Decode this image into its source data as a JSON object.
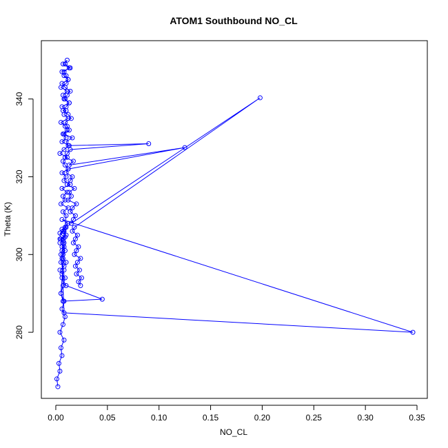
{
  "chart_data": {
    "type": "line",
    "title": "ATOM1 Southbound NO_CL",
    "xlabel": "NO_CL",
    "ylabel": "Theta (K)",
    "xlim": [
      -0.014,
      0.36
    ],
    "ylim": [
      263,
      355
    ],
    "x_ticks": [
      0.0,
      0.05,
      0.1,
      0.15,
      0.2,
      0.25,
      0.3,
      0.35
    ],
    "x_tick_labels": [
      "0.00",
      "0.05",
      "0.10",
      "0.15",
      "0.20",
      "0.25",
      "0.30",
      "0.35"
    ],
    "y_ticks": [
      280,
      300,
      320,
      340
    ],
    "y_tick_labels": [
      "280",
      "300",
      "320",
      "340"
    ],
    "grid": false,
    "legend": "none",
    "color": "#0000ff",
    "series": [
      {
        "x": [
          0.002,
          0.001,
          0.004,
          0.003,
          0.006,
          0.005,
          0.008,
          0.004,
          0.007,
          0.009,
          0.006,
          0.008,
          0.005,
          0.007,
          0.009,
          0.006,
          0.004,
          0.008,
          0.01,
          0.007,
          0.005,
          0.006,
          0.008,
          0.004,
          0.007,
          0.005,
          0.009,
          0.006,
          0.004,
          0.008,
          0.006,
          0.01,
          0.005,
          0.007,
          0.045,
          0.01,
          0.006,
          0.008,
          0.005,
          0.007,
          0.009,
          0.006,
          0.008,
          0.004,
          0.01,
          0.007,
          0.009,
          0.012,
          0.006,
          0.346,
          0.008,
          0.006,
          0.01,
          0.007,
          0.012,
          0.005,
          0.009,
          0.007,
          0.011,
          0.006,
          0.014,
          0.008,
          0.01,
          0.006,
          0.012,
          0.009,
          0.007,
          0.011,
          0.004,
          0.008,
          0.013,
          0.006,
          0.01,
          0.007,
          0.011,
          0.009,
          0.005,
          0.012,
          0.008,
          0.01,
          0.006,
          0.013,
          0.009,
          0.007,
          0.011,
          0.005,
          0.01,
          0.012,
          0.008,
          0.006,
          0.014,
          0.009,
          0.011,
          0.007,
          0.013,
          0.008,
          0.01,
          0.012,
          0.006,
          0.009,
          0.014,
          0.011,
          0.008,
          0.013,
          0.01,
          0.007,
          0.012,
          0.015,
          0.009,
          0.011,
          0.013,
          0.008,
          0.016,
          0.01,
          0.012,
          0.09,
          0.014,
          0.011,
          0.009,
          0.017,
          0.013,
          0.125,
          0.012,
          0.01,
          0.016,
          0.014,
          0.011,
          0.018,
          0.013,
          0.015,
          0.012,
          0.02,
          0.016,
          0.014,
          0.019,
          0.017,
          0.015,
          0.198,
          0.018,
          0.016,
          0.021,
          0.019,
          0.017,
          0.022,
          0.02,
          0.018,
          0.024,
          0.021,
          0.019,
          0.023,
          0.02,
          0.025,
          0.022,
          0.024
        ],
        "y": [
          266,
          268,
          270,
          272,
          274,
          276,
          278,
          280,
          282,
          284,
          286,
          288,
          290,
          292,
          294,
          295,
          296,
          297,
          298,
          299,
          300,
          301,
          302,
          303,
          303.5,
          304,
          304.5,
          305,
          305.5,
          306,
          306.5,
          307,
          290,
          288,
          288.5,
          292,
          294,
          296,
          298,
          300,
          301,
          302,
          303,
          304,
          305,
          306,
          307,
          308,
          309,
          280,
          285,
          299,
          310,
          311,
          312,
          313,
          314,
          315,
          316,
          317,
          318,
          319,
          320,
          321,
          322,
          323,
          324,
          325,
          326,
          327,
          328,
          329,
          330,
          331,
          332,
          333,
          334,
          335,
          336,
          337,
          338,
          339,
          340,
          341,
          342,
          343,
          344,
          345,
          346,
          347,
          348,
          349,
          350,
          349,
          348,
          347,
          346,
          345,
          344,
          343,
          342,
          341,
          340,
          339,
          338,
          337,
          336,
          335,
          334,
          333,
          332,
          331,
          330,
          329,
          328,
          328.5,
          327,
          326,
          325,
          324,
          323,
          327.5,
          322,
          321,
          320,
          319,
          318,
          317,
          316,
          315,
          314,
          313,
          312,
          311,
          310,
          309,
          308,
          340.3,
          307,
          306,
          305,
          304,
          303,
          302,
          301,
          300,
          299,
          298,
          297,
          296,
          295,
          294,
          293,
          292
        ]
      }
    ]
  }
}
